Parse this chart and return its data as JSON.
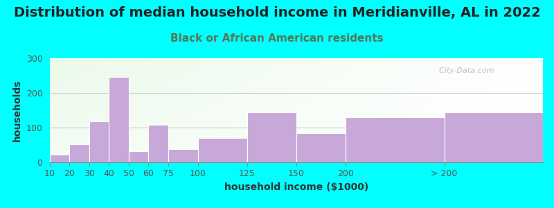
{
  "title": "Distribution of median household income in Meridianville, AL in 2022",
  "subtitle": "Black or African American residents",
  "xlabel": "household income ($1000)",
  "ylabel": "households",
  "background_outer": "#00FFFF",
  "bar_color": "#C8A8D8",
  "bar_edge_color": "#ffffff",
  "categories": [
    "10",
    "20",
    "30",
    "40",
    "50",
    "60",
    "75",
    "100",
    "125",
    "150",
    "200",
    "> 200"
  ],
  "values": [
    22,
    52,
    118,
    247,
    33,
    108,
    38,
    70,
    145,
    85,
    130,
    145
  ],
  "left_edges": [
    0,
    10,
    20,
    30,
    40,
    50,
    60,
    75,
    100,
    125,
    150,
    200
  ],
  "widths": [
    10,
    10,
    10,
    10,
    10,
    10,
    15,
    25,
    25,
    25,
    50,
    50
  ],
  "ylim": [
    0,
    300
  ],
  "yticks": [
    0,
    100,
    200,
    300
  ],
  "watermark": "  City-Data.com",
  "title_fontsize": 14,
  "subtitle_fontsize": 11,
  "axis_label_fontsize": 10,
  "tick_fontsize": 9,
  "subtitle_color": "#557755",
  "title_color": "#222222",
  "tick_label_color": "#555555"
}
